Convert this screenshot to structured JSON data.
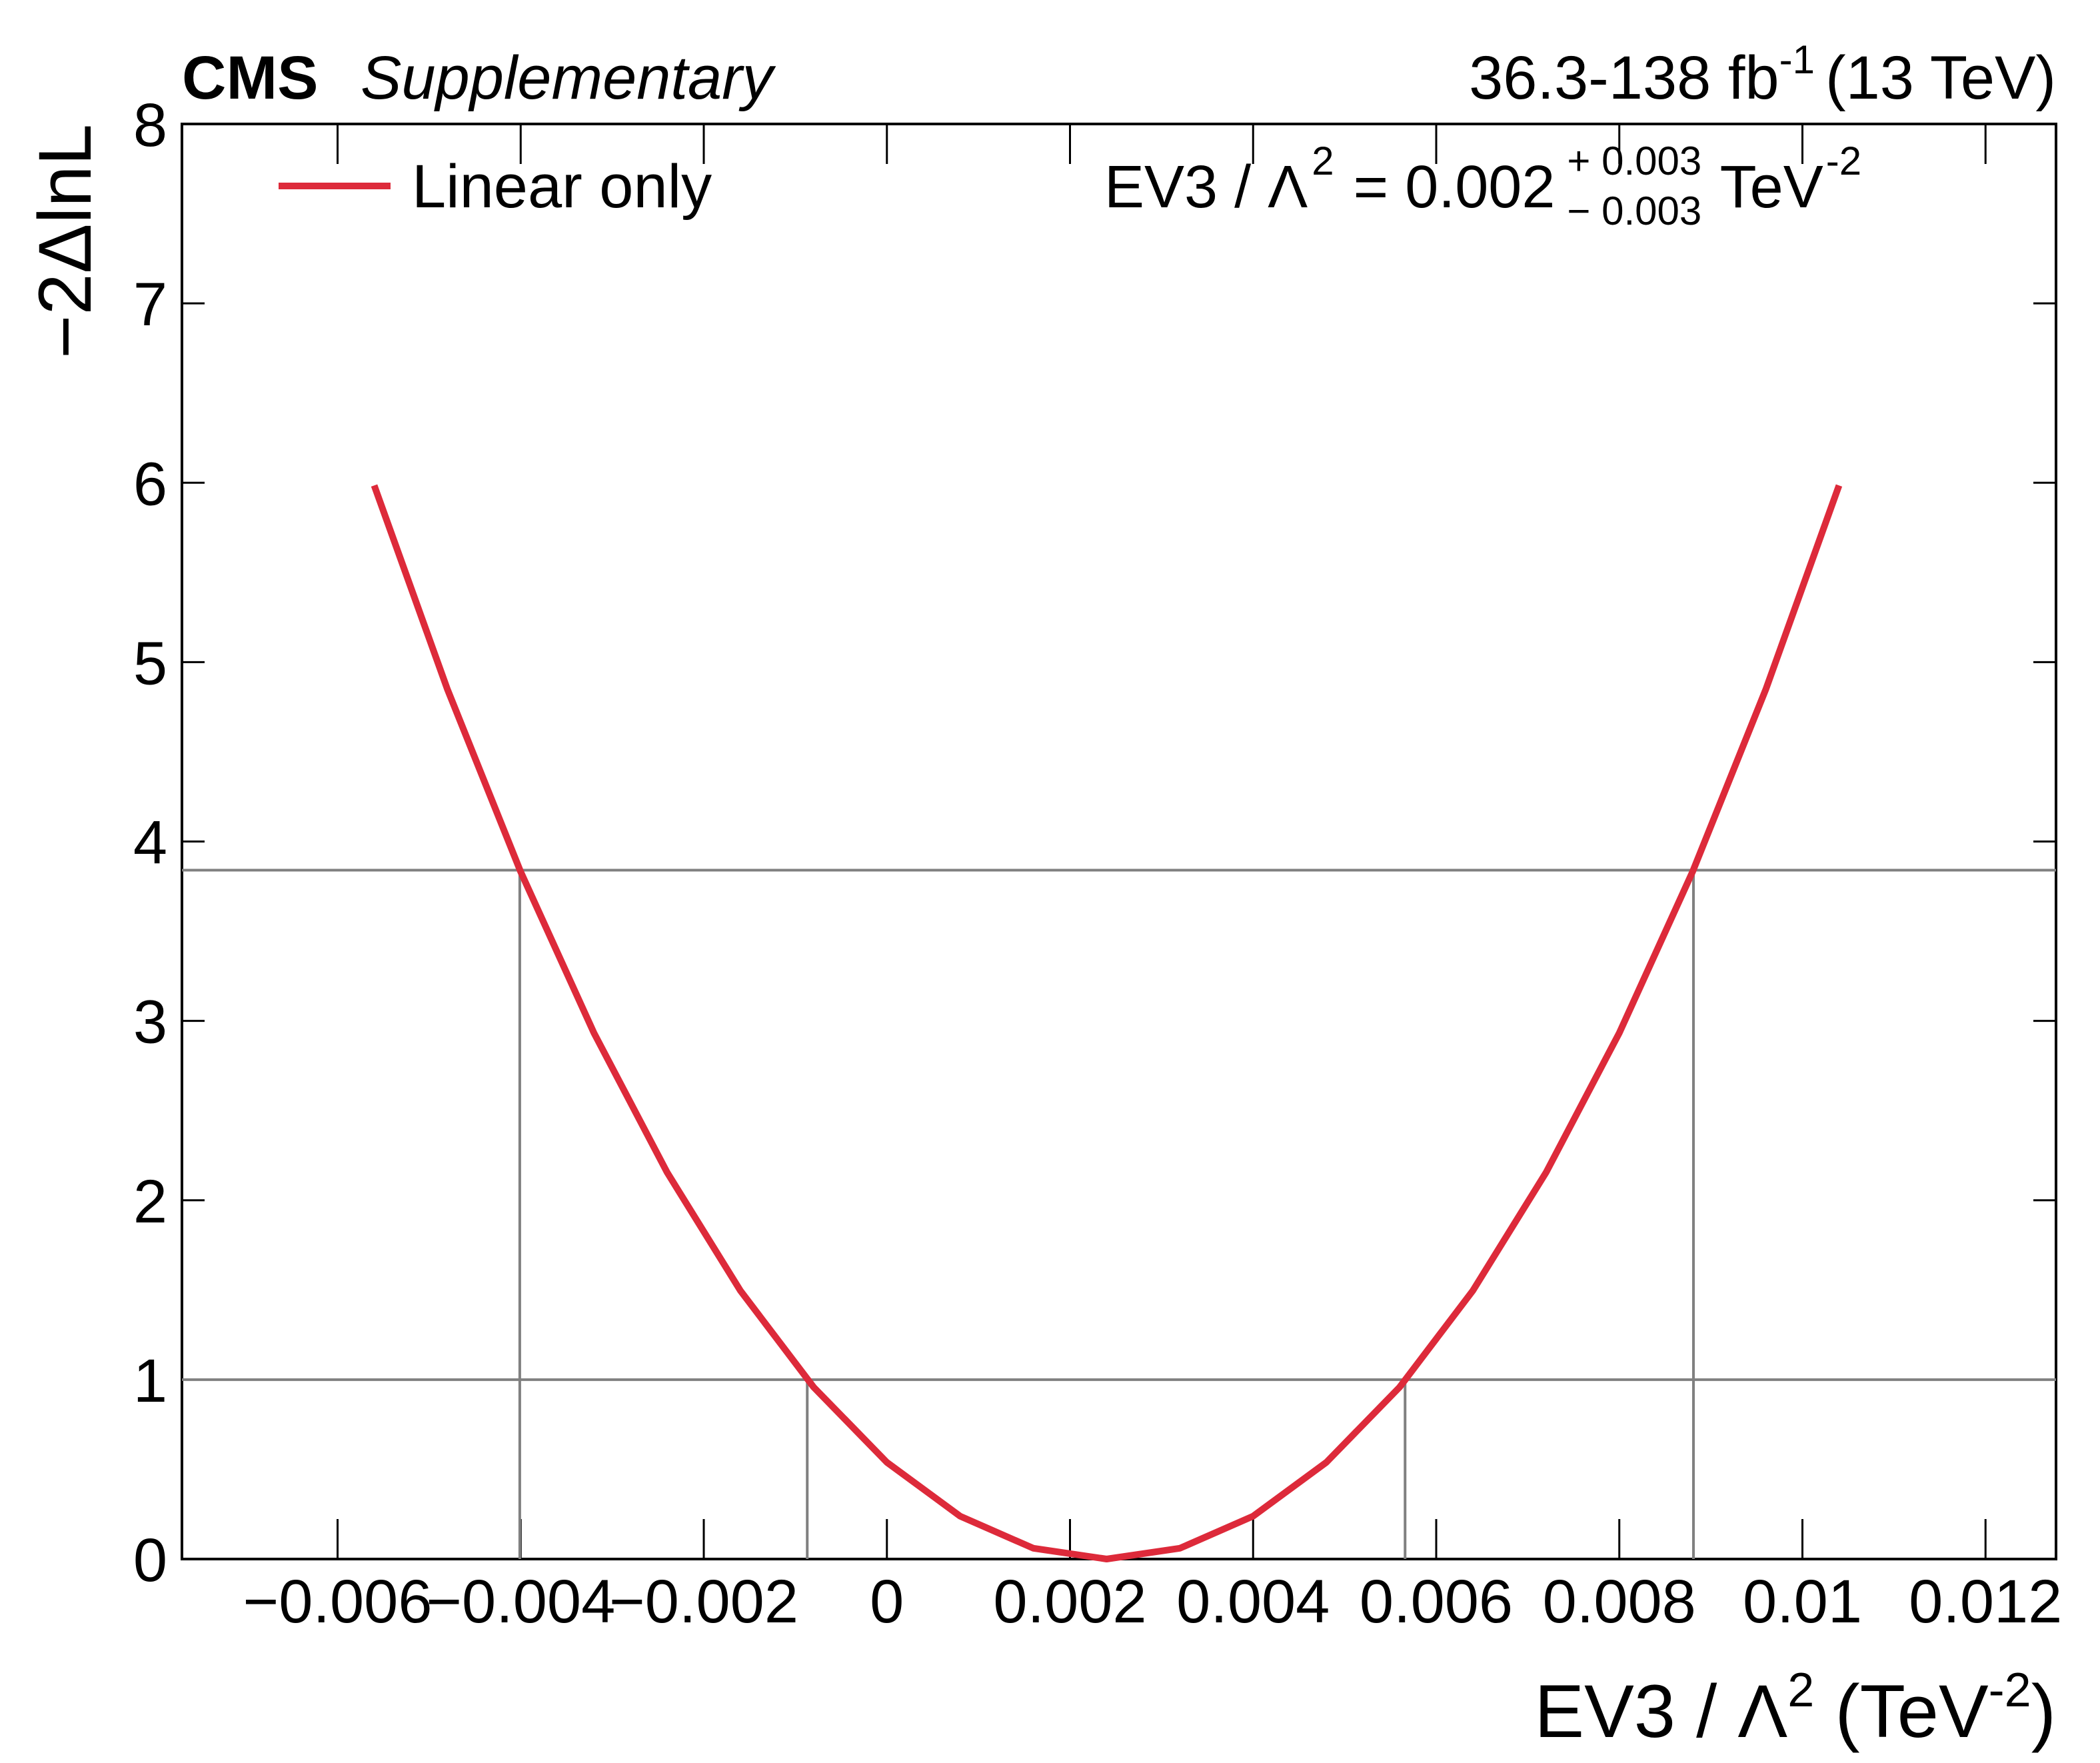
{
  "chart_data": {
    "type": "line",
    "header": {
      "experiment": "CMS",
      "status": "Supplementary",
      "lumi": "36.3-138 fb",
      "lumi_exp": "-1",
      "energy": "(13 TeV)"
    },
    "x_label": {
      "main": "EV3 / Λ",
      "sup": "2",
      "unit": " (TeV",
      "unit_sup": "-2",
      "close": ")"
    },
    "y_label": "−2ΔlnL",
    "annotation": {
      "main": "EV3 / Λ",
      "sup": "2",
      "value": " = 0.002",
      "plus": "+ 0.003",
      "minus": "− 0.003",
      "unit": " TeV",
      "unit_sup": "-2"
    },
    "x": [
      -0.0056,
      -0.0048,
      -0.004,
      -0.0032,
      -0.0024,
      -0.0016,
      -0.0008,
      0,
      0.0008,
      0.0016,
      0.0024,
      0.0032,
      0.004,
      0.0048,
      0.0056,
      0.0064,
      0.0072,
      0.008,
      0.0088,
      0.0096,
      0.0104
    ],
    "series": [
      {
        "name": "Linear only",
        "color": "#dd2a3a",
        "values": [
          5.985,
          4.848,
          3.831,
          2.933,
          2.155,
          1.496,
          0.958,
          0.539,
          0.239,
          0.06,
          0,
          0.06,
          0.239,
          0.539,
          0.958,
          1.496,
          2.155,
          2.933,
          3.831,
          4.848,
          5.985
        ]
      }
    ],
    "hlines": [
      1,
      3.84
    ],
    "vlines": [
      {
        "x": -0.00087,
        "y": 1
      },
      {
        "x": 0.00566,
        "y": 1
      },
      {
        "x": -0.00401,
        "y": 3.84
      },
      {
        "x": 0.00881,
        "y": 3.84
      }
    ],
    "ref_color": "#808080",
    "xlim": [
      -0.0077,
      0.01277
    ],
    "ylim": [
      0,
      8
    ],
    "xticks": [
      {
        "value": -0.006,
        "label": "−0.006"
      },
      {
        "value": -0.004,
        "label": "−0.004"
      },
      {
        "value": -0.002,
        "label": "−0.002"
      },
      0,
      0.002,
      0.004,
      0.006,
      0.008,
      0.01,
      0.012
    ],
    "yticks": [
      0,
      1,
      2,
      3,
      4,
      5,
      6,
      7,
      8
    ],
    "legend": "upper left"
  }
}
